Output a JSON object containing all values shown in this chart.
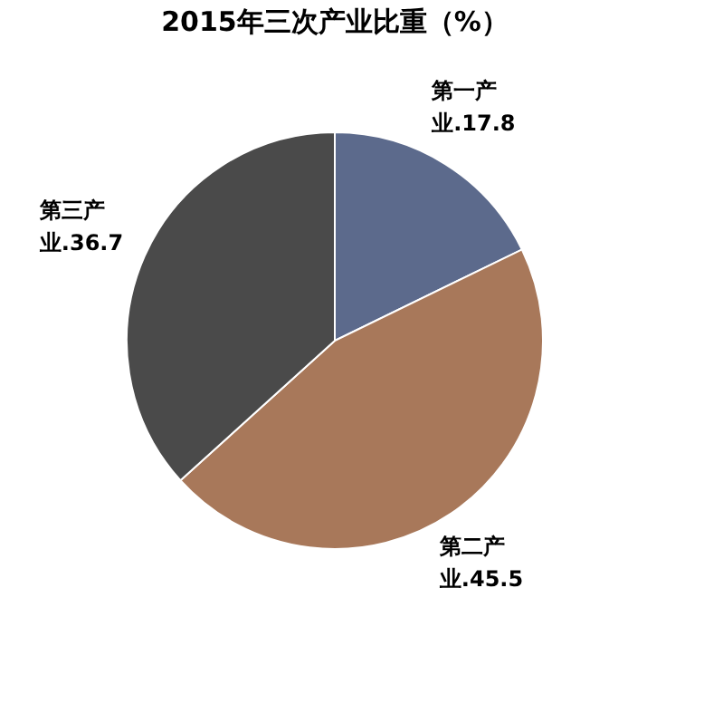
{
  "chart_data": {
    "type": "pie",
    "title": "2015年三次产业比重（%）",
    "categories": [
      "第一产业",
      "第二产业",
      "第三产业"
    ],
    "values": [
      17.8,
      45.5,
      36.7
    ],
    "colors": [
      "#5c6a8c",
      "#a8785a",
      "#4a4a4a"
    ],
    "value_labels": [
      ".17.8",
      ".45.5",
      ".36.7"
    ],
    "legend": false
  }
}
